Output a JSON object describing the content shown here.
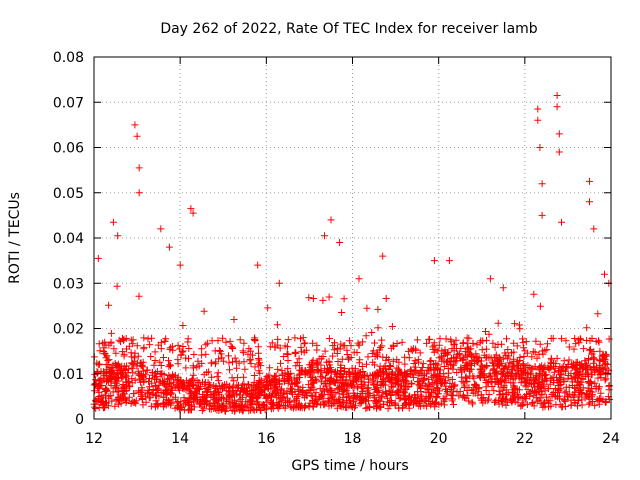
{
  "chart_data": {
    "type": "scatter",
    "title": "Day 262 of 2022, Rate Of TEC Index for receiver lamb",
    "xlabel": "GPS time / hours",
    "ylabel": "ROTI / TECUs",
    "xlim": [
      12,
      24
    ],
    "ylim": [
      0,
      0.08
    ],
    "xticks": [
      "12",
      "14",
      "16",
      "18",
      "20",
      "22",
      "24"
    ],
    "yticks": [
      "0",
      "0.01",
      "0.02",
      "0.03",
      "0.04",
      "0.05",
      "0.06",
      "0.07",
      "0.08"
    ],
    "grid": true,
    "marker": "plus",
    "color": "#ff0000",
    "series": [
      {
        "name": "ROTI",
        "baseline_by_hour": [
          [
            12.0,
            0.0075
          ],
          [
            12.5,
            0.0085
          ],
          [
            13.0,
            0.009
          ],
          [
            13.5,
            0.0075
          ],
          [
            14.0,
            0.0065
          ],
          [
            14.5,
            0.006
          ],
          [
            15.0,
            0.0055
          ],
          [
            15.5,
            0.0055
          ],
          [
            16.0,
            0.0065
          ],
          [
            16.5,
            0.0075
          ],
          [
            17.0,
            0.008
          ],
          [
            17.5,
            0.008
          ],
          [
            18.0,
            0.0075
          ],
          [
            18.5,
            0.0075
          ],
          [
            19.0,
            0.0075
          ],
          [
            19.5,
            0.008
          ],
          [
            20.0,
            0.009
          ],
          [
            20.5,
            0.0105
          ],
          [
            21.0,
            0.0105
          ],
          [
            21.5,
            0.0095
          ],
          [
            22.0,
            0.0085
          ],
          [
            22.5,
            0.0085
          ],
          [
            23.0,
            0.009
          ],
          [
            23.5,
            0.0095
          ],
          [
            24.0,
            0.0105
          ]
        ],
        "peaks": [
          [
            12.1,
            0.0355
          ],
          [
            12.45,
            0.0435
          ],
          [
            12.55,
            0.0405
          ],
          [
            12.95,
            0.065
          ],
          [
            13.0,
            0.0625
          ],
          [
            13.05,
            0.0555
          ],
          [
            13.05,
            0.05
          ],
          [
            13.55,
            0.042
          ],
          [
            13.75,
            0.038
          ],
          [
            14.0,
            0.034
          ],
          [
            14.25,
            0.0465
          ],
          [
            14.3,
            0.0455
          ],
          [
            15.25,
            0.022
          ],
          [
            15.8,
            0.034
          ],
          [
            16.3,
            0.03
          ],
          [
            17.35,
            0.0405
          ],
          [
            17.5,
            0.044
          ],
          [
            17.7,
            0.039
          ],
          [
            18.15,
            0.031
          ],
          [
            18.7,
            0.036
          ],
          [
            19.9,
            0.035
          ],
          [
            20.25,
            0.035
          ],
          [
            21.2,
            0.031
          ],
          [
            21.5,
            0.029
          ],
          [
            22.3,
            0.0685
          ],
          [
            22.3,
            0.066
          ],
          [
            22.35,
            0.06
          ],
          [
            22.4,
            0.052
          ],
          [
            22.4,
            0.045
          ],
          [
            22.75,
            0.0715
          ],
          [
            22.75,
            0.069
          ],
          [
            22.8,
            0.063
          ],
          [
            22.8,
            0.059
          ],
          [
            22.85,
            0.0435
          ],
          [
            23.5,
            0.0525
          ],
          [
            23.5,
            0.048
          ],
          [
            23.6,
            0.042
          ],
          [
            23.85,
            0.032
          ],
          [
            23.95,
            0.03
          ]
        ],
        "active_bands": [
          [
            12.3,
            13.9,
            0.03
          ],
          [
            13.9,
            14.6,
            0.025
          ],
          [
            15.6,
            16.5,
            0.025
          ],
          [
            16.8,
            17.9,
            0.03
          ],
          [
            18.2,
            19.0,
            0.028
          ],
          [
            19.6,
            20.6,
            0.025
          ],
          [
            20.9,
            21.9,
            0.025
          ],
          [
            22.1,
            22.9,
            0.028
          ],
          [
            23.2,
            24.0,
            0.025
          ]
        ]
      }
    ]
  }
}
